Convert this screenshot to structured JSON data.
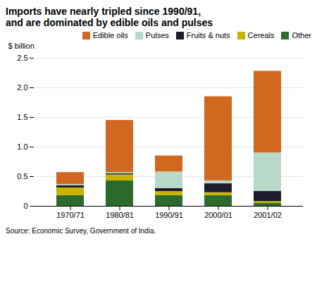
{
  "chart_data": {
    "type": "bar",
    "stacked": true,
    "title": "Imports have nearly tripled since 1990/91,\nand are dominated by edible oils and pulses",
    "caption": "Source: Economic Survey, Government of India.",
    "ylabel": "$ billion",
    "categories": [
      "1970/71",
      "1980/81",
      "1990/91",
      "2000/01",
      "2001/02"
    ],
    "series": [
      {
        "name": "Other",
        "color": "#2d6a2d",
        "values": [
          0.18,
          0.43,
          0.18,
          0.18,
          0.05
        ]
      },
      {
        "name": "Cereals",
        "color": "#c8b400",
        "values": [
          0.13,
          0.1,
          0.07,
          0.05,
          0.03
        ]
      },
      {
        "name": "Fruits & nuts",
        "color": "#1c1c2e",
        "values": [
          0.04,
          0.02,
          0.05,
          0.15,
          0.17
        ]
      },
      {
        "name": "Pulses",
        "color": "#b8d8c8",
        "values": [
          0.02,
          0.02,
          0.28,
          0.05,
          0.65
        ]
      },
      {
        "name": "Edible oils",
        "color": "#d06820",
        "values": [
          0.2,
          0.88,
          0.27,
          1.42,
          1.38
        ]
      }
    ],
    "ylim": [
      0,
      2.5
    ],
    "yticks": [
      0,
      0.5,
      {
        "value": 1.0,
        "label": "1.0"
      },
      {
        "value": 1.5,
        "label": "1.5"
      },
      {
        "value": 2.0,
        "label": "2.0"
      },
      2.5
    ],
    "grid": true,
    "legend": "upper right"
  }
}
